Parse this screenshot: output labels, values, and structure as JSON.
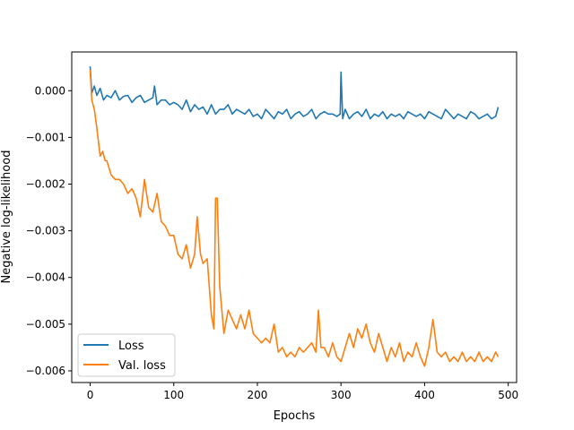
{
  "chart_data": {
    "type": "line",
    "title": "",
    "xlabel": "Epochs",
    "ylabel": "Negative log-likelihood",
    "xlim": [
      -22,
      510
    ],
    "ylim": [
      -0.00625,
      0.00083
    ],
    "xticks": [
      0,
      100,
      200,
      300,
      400,
      500
    ],
    "xtick_labels": [
      "0",
      "100",
      "200",
      "300",
      "400",
      "500"
    ],
    "yticks": [
      0.0,
      -0.001,
      -0.002,
      -0.003,
      -0.004,
      -0.005,
      -0.006
    ],
    "ytick_labels": [
      "0.000",
      "−0.001",
      "−0.002",
      "−0.003",
      "−0.004",
      "−0.005",
      "−0.006"
    ],
    "grid": false,
    "legend_position": "lower-left",
    "series": [
      {
        "name": "Loss",
        "color": "#1f77b4",
        "x": [
          0,
          2,
          5,
          8,
          12,
          16,
          20,
          25,
          30,
          35,
          40,
          45,
          50,
          55,
          60,
          65,
          70,
          75,
          77,
          80,
          85,
          90,
          95,
          100,
          105,
          110,
          115,
          120,
          125,
          130,
          135,
          140,
          145,
          150,
          155,
          160,
          165,
          170,
          175,
          180,
          185,
          190,
          195,
          200,
          205,
          210,
          215,
          220,
          225,
          230,
          235,
          240,
          245,
          250,
          255,
          260,
          265,
          270,
          275,
          280,
          285,
          290,
          295,
          299,
          300,
          302,
          305,
          310,
          315,
          320,
          325,
          330,
          335,
          340,
          345,
          350,
          355,
          360,
          365,
          370,
          375,
          380,
          385,
          390,
          395,
          400,
          405,
          410,
          415,
          420,
          425,
          430,
          435,
          440,
          445,
          450,
          455,
          460,
          465,
          470,
          475,
          480,
          485,
          488
        ],
        "y": [
          0.00052,
          -5e-05,
          0.0001,
          -0.0001,
          5e-05,
          -0.0002,
          -0.0001,
          -0.00015,
          0.0,
          -0.0002,
          -0.00012,
          -0.0001,
          -0.00025,
          -0.00015,
          -0.0001,
          -0.00025,
          -0.0002,
          -0.00015,
          0.0001,
          -0.0003,
          -0.0002,
          -0.0002,
          -0.0003,
          -0.00025,
          -0.0003,
          -0.0004,
          -0.0002,
          -0.00045,
          -0.0003,
          -0.0004,
          -0.00035,
          -0.0005,
          -0.0003,
          -0.0005,
          -0.0004,
          -0.0004,
          -0.0003,
          -0.0005,
          -0.0004,
          -0.00045,
          -0.0005,
          -0.0004,
          -0.00055,
          -0.0005,
          -0.0006,
          -0.0004,
          -0.0005,
          -0.0006,
          -0.00045,
          -0.0005,
          -0.0004,
          -0.0006,
          -0.0005,
          -0.00045,
          -0.00055,
          -0.0005,
          -0.0004,
          -0.0006,
          -0.0005,
          -0.00045,
          -0.0005,
          -0.0005,
          -0.00055,
          -0.0005,
          0.0004,
          -0.0006,
          -0.0004,
          -0.0006,
          -0.0005,
          -0.00045,
          -0.00055,
          -0.0004,
          -0.0006,
          -0.0005,
          -0.00055,
          -0.00045,
          -0.0006,
          -0.0005,
          -0.00055,
          -0.0005,
          -0.0006,
          -0.00045,
          -0.0005,
          -0.00055,
          -0.0005,
          -0.0006,
          -0.00045,
          -0.0005,
          -0.00055,
          -0.0006,
          -0.0004,
          -0.0005,
          -0.0006,
          -0.0005,
          -0.00055,
          -0.0006,
          -0.00045,
          -0.0005,
          -0.0006,
          -0.00055,
          -0.0005,
          -0.0006,
          -0.00055,
          -0.00035
        ]
      },
      {
        "name": "Val. loss",
        "color": "#ff7f0e",
        "x": [
          0,
          2,
          5,
          8,
          10,
          12,
          15,
          18,
          20,
          25,
          30,
          35,
          40,
          45,
          50,
          55,
          60,
          65,
          70,
          75,
          80,
          85,
          90,
          95,
          100,
          105,
          110,
          115,
          120,
          125,
          128,
          132,
          135,
          140,
          145,
          148,
          150,
          152,
          155,
          160,
          165,
          170,
          175,
          180,
          185,
          190,
          195,
          200,
          205,
          210,
          215,
          220,
          225,
          230,
          235,
          240,
          245,
          250,
          255,
          260,
          265,
          270,
          273,
          276,
          280,
          285,
          290,
          295,
          300,
          305,
          310,
          315,
          320,
          325,
          330,
          335,
          340,
          345,
          350,
          355,
          360,
          365,
          370,
          375,
          380,
          385,
          390,
          395,
          400,
          405,
          410,
          415,
          420,
          425,
          430,
          435,
          440,
          445,
          450,
          455,
          460,
          465,
          470,
          475,
          480,
          485,
          488
        ],
        "y": [
          0.00045,
          -0.0002,
          -0.0004,
          -0.0008,
          -0.0011,
          -0.0014,
          -0.0013,
          -0.0015,
          -0.0015,
          -0.0018,
          -0.0019,
          -0.0019,
          -0.002,
          -0.0022,
          -0.0021,
          -0.0023,
          -0.0027,
          -0.0019,
          -0.0025,
          -0.0026,
          -0.0022,
          -0.0028,
          -0.0029,
          -0.0031,
          -0.0031,
          -0.0035,
          -0.0036,
          -0.0033,
          -0.0038,
          -0.0035,
          -0.0027,
          -0.0035,
          -0.0037,
          -0.0036,
          -0.0048,
          -0.0051,
          -0.0023,
          -0.0023,
          -0.0042,
          -0.0052,
          -0.0047,
          -0.0049,
          -0.0051,
          -0.0048,
          -0.0051,
          -0.0047,
          -0.0052,
          -0.0053,
          -0.0054,
          -0.0053,
          -0.0054,
          -0.005,
          -0.0056,
          -0.0055,
          -0.0057,
          -0.0056,
          -0.0057,
          -0.0055,
          -0.0056,
          -0.0055,
          -0.0054,
          -0.0056,
          -0.0047,
          -0.0055,
          -0.0055,
          -0.0057,
          -0.0054,
          -0.0057,
          -0.0058,
          -0.0055,
          -0.0052,
          -0.0055,
          -0.0051,
          -0.0053,
          -0.005,
          -0.0054,
          -0.0056,
          -0.0052,
          -0.0055,
          -0.0058,
          -0.0055,
          -0.0057,
          -0.0054,
          -0.0058,
          -0.0056,
          -0.0057,
          -0.0054,
          -0.0057,
          -0.0059,
          -0.0055,
          -0.0049,
          -0.0056,
          -0.0057,
          -0.0056,
          -0.0058,
          -0.0057,
          -0.0058,
          -0.0056,
          -0.0058,
          -0.0057,
          -0.0058,
          -0.0056,
          -0.0058,
          -0.0057,
          -0.0058,
          -0.0056,
          -0.0057
        ]
      }
    ]
  }
}
